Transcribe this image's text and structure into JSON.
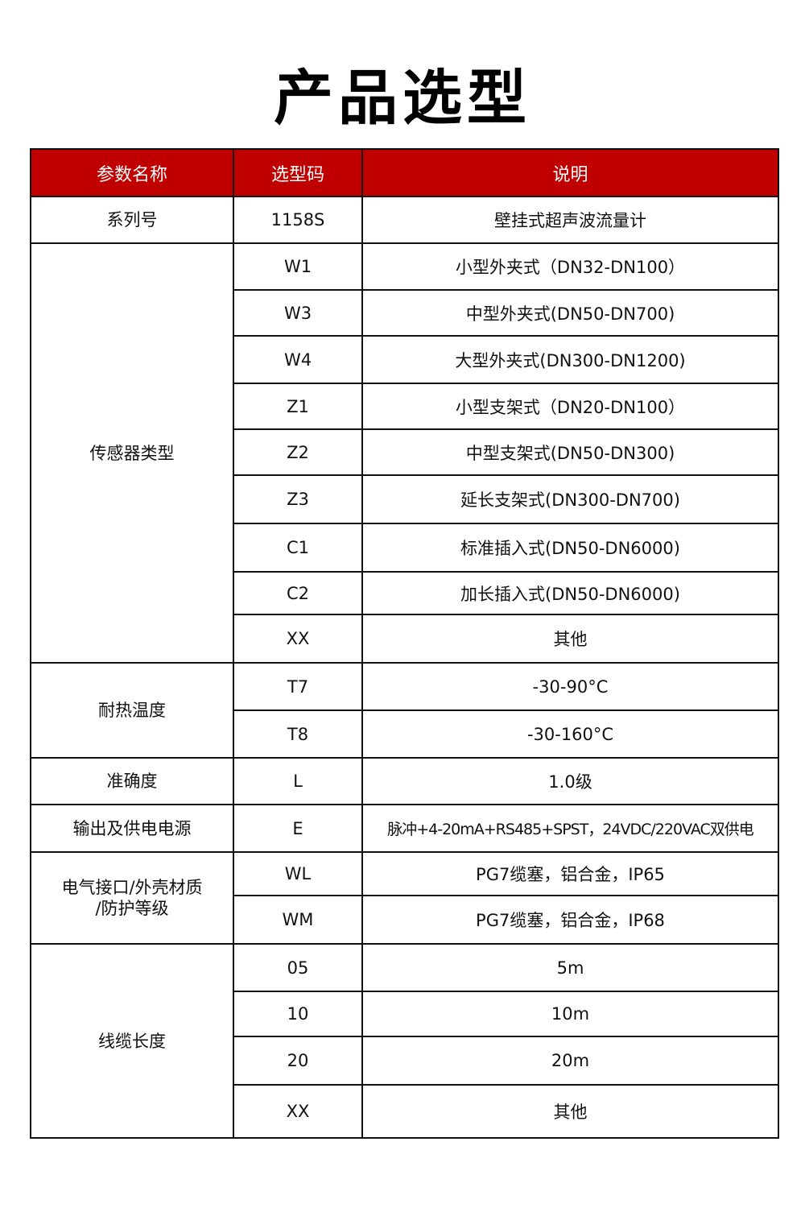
{
  "title": "产品选型",
  "header_color": "#c00000",
  "table": {
    "headers": [
      "参数名称",
      "选型码",
      "说明"
    ],
    "groups": [
      {
        "param": "系列号",
        "rows": [
          {
            "code": "1158S",
            "desc": "壁挂式超声波流量计"
          }
        ]
      },
      {
        "param": "传感器类型",
        "rows": [
          {
            "code": "W1",
            "desc": "小型外夹式（DN32-DN100）"
          },
          {
            "code": "W3",
            "desc": "中型外夹式(DN50-DN700)"
          },
          {
            "code": "W4",
            "desc": "大型外夹式(DN300-DN1200)"
          },
          {
            "code": "Z1",
            "desc": "小型支架式（DN20-DN100）"
          },
          {
            "code": "Z2",
            "desc": "中型支架式(DN50-DN300)"
          },
          {
            "code": "Z3",
            "desc": "延长支架式(DN300-DN700)"
          },
          {
            "code": "C1",
            "desc": "标准插入式(DN50-DN6000)"
          },
          {
            "code": "C2",
            "desc": "加长插入式(DN50-DN6000)"
          },
          {
            "code": "XX",
            "desc": "其他"
          }
        ]
      },
      {
        "param": "耐热温度",
        "rows": [
          {
            "code": "T7",
            "desc": "-30-90°C"
          },
          {
            "code": "T8",
            "desc": "-30-160°C"
          }
        ]
      },
      {
        "param": "准确度",
        "rows": [
          {
            "code": "L",
            "desc": "1.0级"
          }
        ]
      },
      {
        "param": "输出及供电电源",
        "rows": [
          {
            "code": "E",
            "desc": "脉冲+4-20mA+RS485+SPST，24VDC/220VAC双供电"
          }
        ]
      },
      {
        "param": "电气接口/外壳材质\n/防护等级",
        "rows": [
          {
            "code": "WL",
            "desc": "PG7缆塞，铝合金，IP65"
          },
          {
            "code": "WM",
            "desc": "PG7缆塞，铝合金，IP68"
          }
        ]
      },
      {
        "param": "线缆长度",
        "rows": [
          {
            "code": "05",
            "desc": "5m"
          },
          {
            "code": "10",
            "desc": "10m"
          },
          {
            "code": "20",
            "desc": "20m"
          },
          {
            "code": "XX",
            "desc": "其他"
          }
        ]
      }
    ]
  }
}
